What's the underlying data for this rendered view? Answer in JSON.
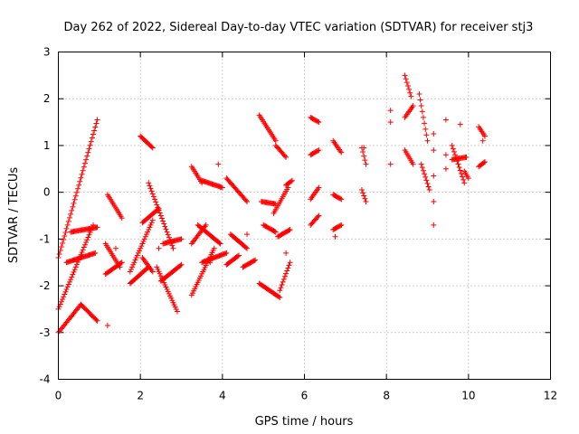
{
  "chart_data": {
    "type": "scatter",
    "title": "Day 262 of 2022, Sidereal Day-to-day VTEC variation (SDTVAR) for receiver stj3",
    "xlabel": "GPS time / hours",
    "ylabel": "SDTVAR / TECUs",
    "xlim": [
      0,
      12
    ],
    "ylim": [
      -4,
      3
    ],
    "xticks": [
      "0",
      "2",
      "4",
      "6",
      "8",
      "10",
      "12"
    ],
    "yticks": [
      "-4",
      "-3",
      "-2",
      "-1",
      "0",
      "1",
      "2",
      "3"
    ],
    "grid": true,
    "marker": "+",
    "color": "#ff0000",
    "segments": [
      {
        "x0": 0.0,
        "x1": 0.95,
        "y0": -1.4,
        "y1": 1.55
      },
      {
        "x0": 0.0,
        "x1": 0.85,
        "y0": -2.5,
        "y1": -0.7
      },
      {
        "x0": 0.2,
        "x1": 0.9,
        "y0": -1.5,
        "y1": -1.3
      },
      {
        "x0": 0.3,
        "x1": 0.95,
        "y0": -0.85,
        "y1": -0.75
      },
      {
        "x0": 0.0,
        "x1": 0.55,
        "y0": -3.0,
        "y1": -2.4
      },
      {
        "x0": 0.55,
        "x1": 0.95,
        "y0": -2.4,
        "y1": -2.75
      },
      {
        "x0": 1.15,
        "x1": 1.55,
        "y0": -1.75,
        "y1": -1.5
      },
      {
        "x0": 1.15,
        "x1": 1.5,
        "y0": -1.1,
        "y1": -1.6
      },
      {
        "x0": 1.2,
        "x1": 1.55,
        "y0": -0.05,
        "y1": -0.55
      },
      {
        "x0": 1.75,
        "x1": 2.2,
        "y0": -1.95,
        "y1": -1.6
      },
      {
        "x0": 1.75,
        "x1": 2.3,
        "y0": -1.7,
        "y1": -0.6
      },
      {
        "x0": 2.0,
        "x1": 2.3,
        "y0": 1.2,
        "y1": 0.95
      },
      {
        "x0": 2.05,
        "x1": 2.45,
        "y0": -0.65,
        "y1": -0.35
      },
      {
        "x0": 2.05,
        "x1": 2.3,
        "y0": -1.4,
        "y1": -1.7
      },
      {
        "x0": 2.2,
        "x1": 2.8,
        "y0": 0.2,
        "y1": -1.2
      },
      {
        "x0": 2.4,
        "x1": 2.9,
        "y0": -1.6,
        "y1": -2.55
      },
      {
        "x0": 2.5,
        "x1": 3.0,
        "y0": -1.9,
        "y1": -1.55
      },
      {
        "x0": 2.55,
        "x1": 3.0,
        "y0": -1.1,
        "y1": -1.0
      },
      {
        "x0": 3.25,
        "x1": 3.5,
        "y0": 0.55,
        "y1": 0.2
      },
      {
        "x0": 3.5,
        "x1": 4.0,
        "y0": 0.25,
        "y1": 0.1
      },
      {
        "x0": 3.25,
        "x1": 3.8,
        "y0": -2.2,
        "y1": -1.2
      },
      {
        "x0": 3.25,
        "x1": 3.6,
        "y0": -1.1,
        "y1": -0.7
      },
      {
        "x0": 3.4,
        "x1": 3.95,
        "y0": -0.7,
        "y1": -1.1
      },
      {
        "x0": 3.5,
        "x1": 4.1,
        "y0": -1.5,
        "y1": -1.3
      },
      {
        "x0": 4.1,
        "x1": 4.6,
        "y0": 0.3,
        "y1": -0.2
      },
      {
        "x0": 4.1,
        "x1": 4.4,
        "y0": -1.55,
        "y1": -1.35
      },
      {
        "x0": 4.2,
        "x1": 4.6,
        "y0": -0.9,
        "y1": -1.2
      },
      {
        "x0": 4.5,
        "x1": 4.8,
        "y0": -1.6,
        "y1": -1.45
      },
      {
        "x0": 4.9,
        "x1": 5.3,
        "y0": 1.65,
        "y1": 1.1
      },
      {
        "x0": 5.3,
        "x1": 5.55,
        "y0": 1.0,
        "y1": 0.75
      },
      {
        "x0": 4.9,
        "x1": 5.4,
        "y0": -1.95,
        "y1": -2.25
      },
      {
        "x0": 5.4,
        "x1": 5.65,
        "y0": -2.1,
        "y1": -1.5
      },
      {
        "x0": 4.95,
        "x1": 5.3,
        "y0": -0.2,
        "y1": -0.25
      },
      {
        "x0": 5.0,
        "x1": 5.3,
        "y0": -0.7,
        "y1": -0.85
      },
      {
        "x0": 5.25,
        "x1": 5.6,
        "y0": -0.45,
        "y1": 0.1
      },
      {
        "x0": 5.35,
        "x1": 5.65,
        "y0": -0.95,
        "y1": -0.8
      },
      {
        "x0": 5.55,
        "x1": 5.7,
        "y0": 0.15,
        "y1": 0.25
      },
      {
        "x0": 6.15,
        "x1": 6.35,
        "y0": 1.6,
        "y1": 1.5
      },
      {
        "x0": 6.15,
        "x1": 6.35,
        "y0": 0.8,
        "y1": 0.9
      },
      {
        "x0": 6.15,
        "x1": 6.35,
        "y0": -0.15,
        "y1": 0.1
      },
      {
        "x0": 6.15,
        "x1": 6.35,
        "y0": -0.7,
        "y1": -0.5
      },
      {
        "x0": 6.7,
        "x1": 6.9,
        "y0": 1.1,
        "y1": 0.85
      },
      {
        "x0": 6.7,
        "x1": 6.9,
        "y0": -0.05,
        "y1": -0.15
      },
      {
        "x0": 6.7,
        "x1": 6.9,
        "y0": -0.8,
        "y1": -0.7
      },
      {
        "x0": 7.4,
        "x1": 7.5,
        "y0": 0.95,
        "y1": 0.6
      },
      {
        "x0": 7.4,
        "x1": 7.5,
        "y0": 0.05,
        "y1": -0.2
      },
      {
        "x0": 8.45,
        "x1": 8.6,
        "y0": 2.5,
        "y1": 2.05
      },
      {
        "x0": 8.45,
        "x1": 8.65,
        "y0": 1.6,
        "y1": 1.85
      },
      {
        "x0": 8.45,
        "x1": 8.65,
        "y0": 0.9,
        "y1": 0.6
      },
      {
        "x0": 8.8,
        "x1": 9.0,
        "y0": 2.1,
        "y1": 1.1
      },
      {
        "x0": 8.85,
        "x1": 9.05,
        "y0": 0.6,
        "y1": 0.05
      },
      {
        "x0": 9.6,
        "x1": 9.9,
        "y0": 1.0,
        "y1": 0.2
      },
      {
        "x0": 9.6,
        "x1": 9.95,
        "y0": 0.7,
        "y1": 0.75
      },
      {
        "x0": 9.9,
        "x1": 10.0,
        "y0": 0.45,
        "y1": 0.3
      },
      {
        "x0": 10.25,
        "x1": 10.4,
        "y0": 1.4,
        "y1": 1.2
      },
      {
        "x0": 10.25,
        "x1": 10.4,
        "y0": 0.55,
        "y1": 0.65
      }
    ],
    "points": [
      [
        1.2,
        -2.85
      ],
      [
        1.4,
        -1.2
      ],
      [
        3.9,
        0.6
      ],
      [
        2.45,
        -1.2
      ],
      [
        6.75,
        -0.95
      ],
      [
        7.45,
        0.95
      ],
      [
        8.1,
        1.75
      ],
      [
        8.1,
        1.5
      ],
      [
        8.1,
        0.6
      ],
      [
        9.15,
        1.25
      ],
      [
        9.15,
        0.9
      ],
      [
        9.15,
        0.35
      ],
      [
        9.15,
        -0.2
      ],
      [
        9.15,
        -0.7
      ],
      [
        9.45,
        1.55
      ],
      [
        9.45,
        0.8
      ],
      [
        9.45,
        0.5
      ],
      [
        9.8,
        1.45
      ],
      [
        5.55,
        -1.3
      ],
      [
        10.35,
        1.1
      ],
      [
        4.6,
        -0.9
      ],
      [
        3.7,
        -1.5
      ]
    ]
  }
}
